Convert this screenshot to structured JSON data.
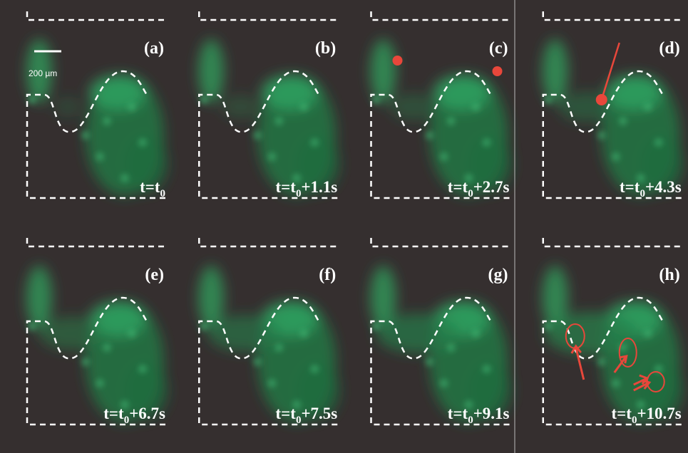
{
  "scale_bar": "200 µm",
  "panels": [
    {
      "label": "(a)",
      "time": {
        "prefix": "t=t",
        "sub": "0"
      }
    },
    {
      "label": "(b)",
      "time": {
        "prefix": "t=t",
        "sub": "0",
        "suffix": "+1.1s"
      }
    },
    {
      "label": "(c)",
      "time": {
        "prefix": "t=t",
        "sub": "0",
        "suffix": "+2.7s"
      }
    },
    {
      "label": "(d)",
      "time": {
        "prefix": "t=t",
        "sub": "0",
        "suffix": "+4.3s"
      }
    },
    {
      "label": "(e)",
      "time": {
        "prefix": "t=t",
        "sub": "0",
        "suffix": "+6.7s"
      }
    },
    {
      "label": "(f)",
      "time": {
        "prefix": "t=t",
        "sub": "0",
        "suffix": "+7.5s"
      }
    },
    {
      "label": "(g)",
      "time": {
        "prefix": "t=t",
        "sub": "0",
        "suffix": "+9.1s"
      }
    },
    {
      "label": "(h)",
      "time": {
        "prefix": "t=t",
        "sub": "0",
        "suffix": "+10.7s"
      }
    }
  ]
}
